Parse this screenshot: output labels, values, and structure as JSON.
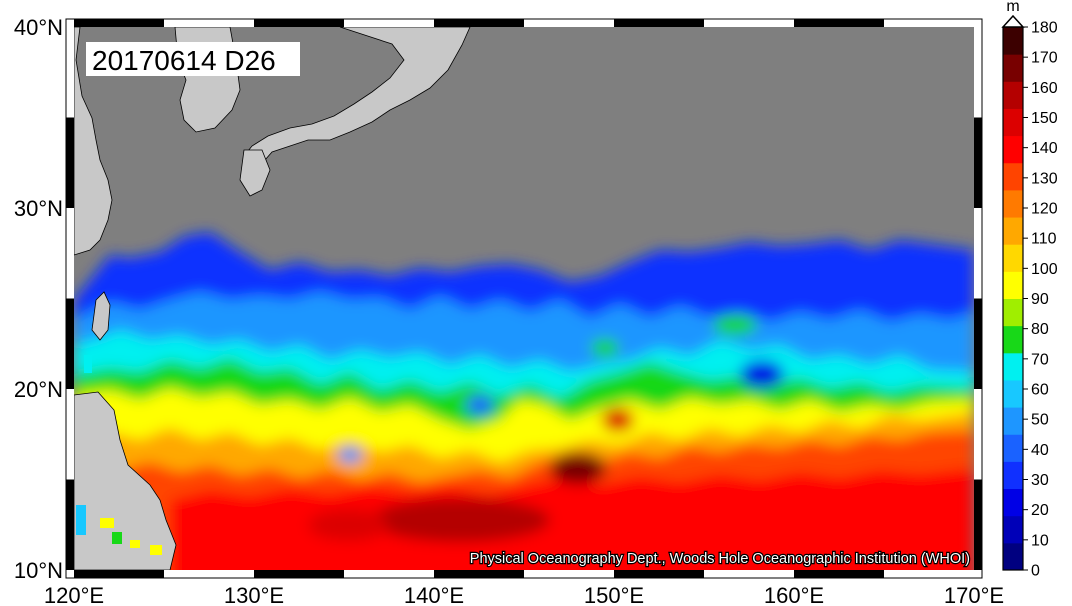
{
  "map": {
    "date_label": "20170614 D26",
    "credit": "Physical Oceanography Dept., Woods Hole Oceanographic Institution (WHOI)",
    "lon_labels": [
      "120°E",
      "130°E",
      "140°E",
      "150°E",
      "160°E",
      "170°E"
    ],
    "lat_labels": [
      "40°N",
      "30°N",
      "20°N",
      "10°N"
    ],
    "extent": {
      "lon_min": 120,
      "lon_max": 170,
      "lat_min": 10,
      "lat_max": 40
    },
    "land_color": "#c8c8c8",
    "no_data_color": "#7f7f7f"
  },
  "colorbar": {
    "unit": "m",
    "ticks": [
      "0",
      "10",
      "20",
      "30",
      "40",
      "50",
      "60",
      "70",
      "80",
      "90",
      "100",
      "110",
      "120",
      "130",
      "140",
      "150",
      "160",
      "170",
      "180"
    ],
    "colors": [
      "#000080",
      "#0000b8",
      "#0000e6",
      "#1030ff",
      "#1a62ff",
      "#1e96ff",
      "#18c8ff",
      "#00f0f0",
      "#18d818",
      "#a0ee00",
      "#ffff00",
      "#ffd800",
      "#ffa800",
      "#ff7a00",
      "#ff4400",
      "#ff0000",
      "#dc0000",
      "#b40000",
      "#780000",
      "#3c0000"
    ]
  }
}
